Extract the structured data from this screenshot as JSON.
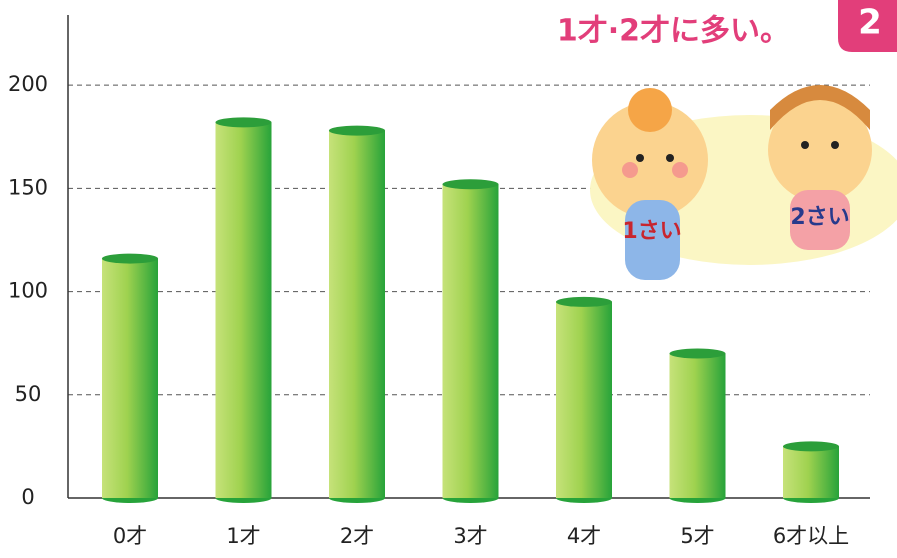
{
  "chart_data": {
    "type": "bar",
    "title": "1才·2才に多い。",
    "badge": "2",
    "illustration_labels": [
      "1さい",
      "2さい"
    ],
    "categories": [
      "0才",
      "1才",
      "2才",
      "3才",
      "4才",
      "5才",
      "6才以上"
    ],
    "values": [
      116,
      182,
      178,
      152,
      95,
      70,
      25
    ],
    "color": "#4cb53a",
    "ylim": [
      0,
      234
    ],
    "yticks": [
      0,
      50,
      100,
      150,
      200
    ],
    "grid": true
  }
}
